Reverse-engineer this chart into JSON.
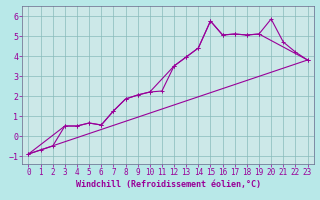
{
  "xlabel": "Windchill (Refroidissement éolien,°C)",
  "bg_color": "#b8e8e8",
  "line_color": "#990099",
  "grid_color": "#88bbbb",
  "axis_bg": "#cce8e8",
  "xlim": [
    -0.5,
    23.5
  ],
  "ylim": [
    -1.4,
    6.5
  ],
  "xticks": [
    0,
    1,
    2,
    3,
    4,
    5,
    6,
    7,
    8,
    9,
    10,
    11,
    12,
    13,
    14,
    15,
    16,
    17,
    18,
    19,
    20,
    21,
    22,
    23
  ],
  "yticks": [
    -1,
    0,
    1,
    2,
    3,
    4,
    5,
    6
  ],
  "line1_x": [
    0,
    1,
    2,
    3,
    4,
    5,
    6,
    7,
    8,
    9,
    10,
    11,
    12,
    13,
    14,
    15,
    16,
    17,
    18,
    19,
    20,
    21,
    22,
    23
  ],
  "line1_y": [
    -0.9,
    -0.7,
    -0.5,
    0.5,
    0.5,
    0.65,
    0.55,
    1.25,
    1.85,
    2.05,
    2.2,
    2.25,
    3.5,
    3.95,
    4.4,
    5.75,
    5.05,
    5.1,
    5.05,
    5.1,
    5.85,
    4.7,
    4.2,
    3.8
  ],
  "line2_x": [
    0,
    3,
    4,
    5,
    6,
    7,
    8,
    9,
    10,
    12,
    13,
    14,
    15,
    16,
    17,
    18,
    19,
    23
  ],
  "line2_y": [
    -0.9,
    0.5,
    0.5,
    0.65,
    0.55,
    1.25,
    1.85,
    2.05,
    2.2,
    3.5,
    3.95,
    4.4,
    5.75,
    5.05,
    5.1,
    5.05,
    5.1,
    3.8
  ],
  "line3_x": [
    0,
    23
  ],
  "line3_y": [
    -0.9,
    3.8
  ],
  "marker_style": "+",
  "marker_size": 3.5,
  "linewidth": 0.8,
  "xlabel_fontsize": 6,
  "ytick_fontsize": 6,
  "xtick_fontsize": 5.5
}
